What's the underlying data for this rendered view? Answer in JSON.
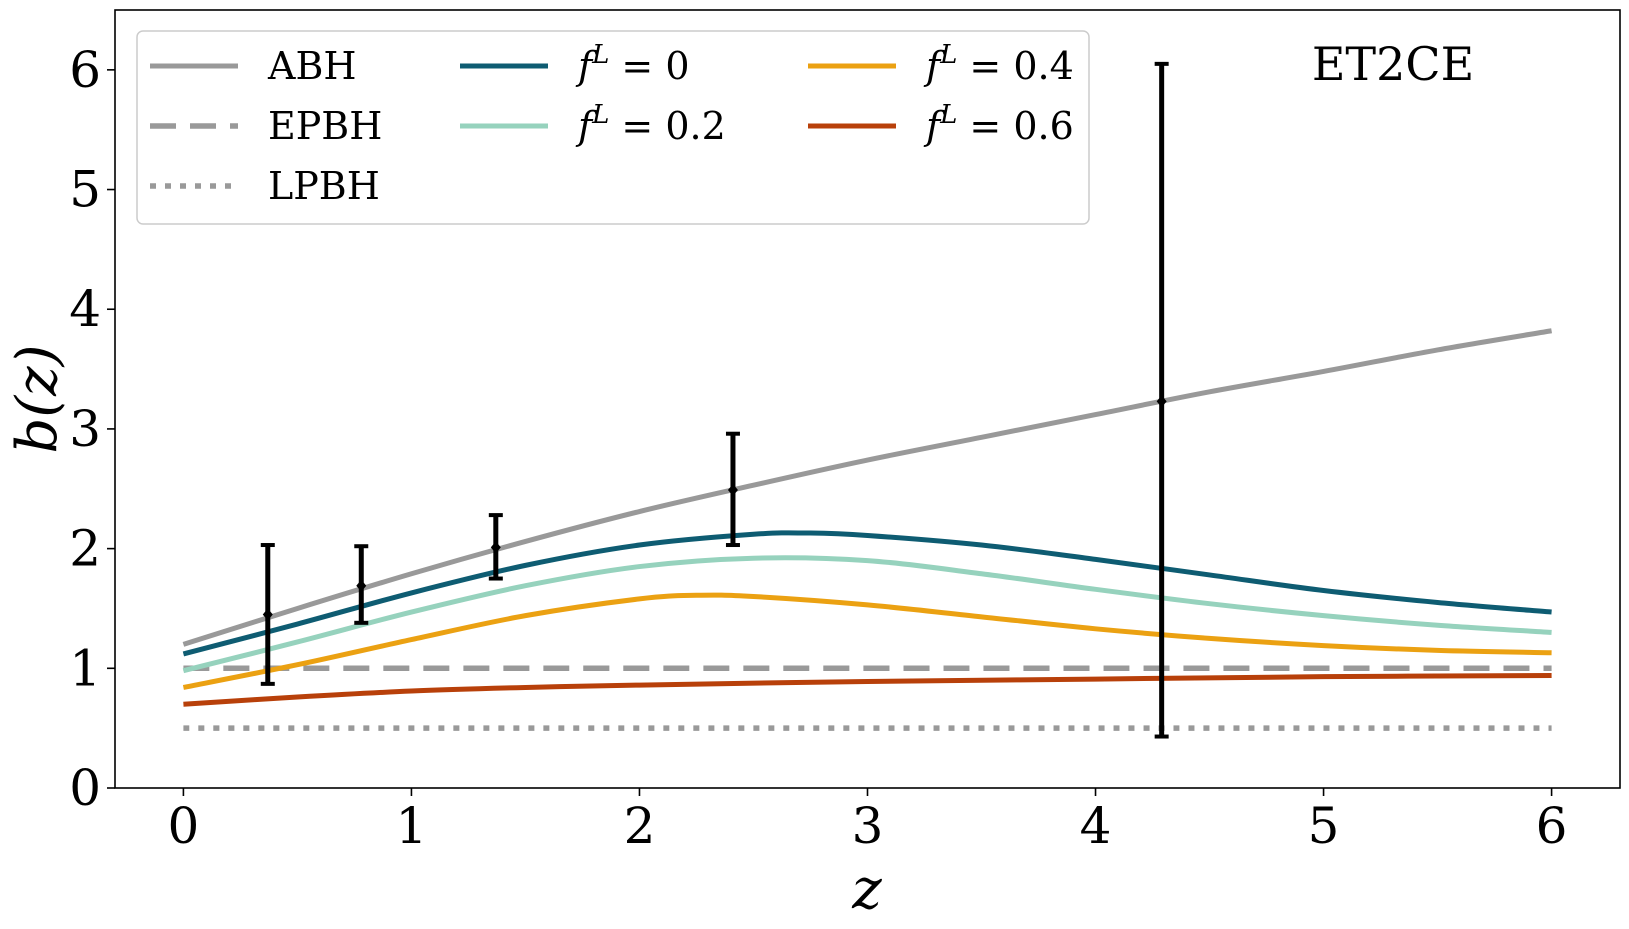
{
  "chart_data": {
    "type": "line",
    "xlabel": "z",
    "ylabel": "b(z)",
    "xlim": [
      -0.3,
      6.3
    ],
    "ylim": [
      0,
      6.5
    ],
    "xticks": [
      0,
      1,
      2,
      3,
      4,
      5,
      6
    ],
    "yticks": [
      0,
      1,
      2,
      3,
      4,
      5,
      6
    ],
    "xtick_labels": [
      "0",
      "1",
      "2",
      "3",
      "4",
      "5",
      "6"
    ],
    "ytick_labels": [
      "0",
      "1",
      "2",
      "3",
      "4",
      "5",
      "6"
    ],
    "grid": false,
    "legend_position": "top-left",
    "annotation": "ET2CE",
    "series": [
      {
        "name": "ABH",
        "color": "#999999",
        "style": "solid",
        "x": [
          0,
          0.5,
          1,
          1.5,
          2,
          2.5,
          3,
          3.5,
          4,
          4.5,
          5,
          5.5,
          6
        ],
        "y": [
          1.2,
          1.5,
          1.79,
          2.06,
          2.31,
          2.53,
          2.74,
          2.93,
          3.12,
          3.31,
          3.48,
          3.66,
          3.82
        ]
      },
      {
        "name": "EPBH",
        "color": "#999999",
        "style": "dashed",
        "x": [
          0,
          6
        ],
        "y": [
          1.0,
          1.0
        ]
      },
      {
        "name": "LPBH",
        "color": "#999999",
        "style": "dotted",
        "x": [
          0,
          6
        ],
        "y": [
          0.5,
          0.5
        ]
      },
      {
        "name": "f^L = 0",
        "label_base": "f",
        "label_sup": "L",
        "label_rest": " = 0",
        "color": "#0e5c72",
        "style": "solid",
        "x": [
          0,
          0.5,
          1,
          1.5,
          2,
          2.5,
          2.75,
          3,
          3.5,
          4,
          4.5,
          5,
          5.5,
          6
        ],
        "y": [
          1.12,
          1.37,
          1.63,
          1.86,
          2.03,
          2.12,
          2.13,
          2.11,
          2.03,
          1.91,
          1.78,
          1.65,
          1.55,
          1.47
        ]
      },
      {
        "name": "f^L = 0.2",
        "label_base": "f",
        "label_sup": "L",
        "label_rest": " = 0.2",
        "color": "#96d2bd",
        "style": "solid",
        "x": [
          0,
          0.5,
          1,
          1.5,
          2,
          2.5,
          3,
          3.5,
          4,
          4.5,
          5,
          5.5,
          6
        ],
        "y": [
          0.98,
          1.22,
          1.47,
          1.69,
          1.85,
          1.92,
          1.9,
          1.79,
          1.66,
          1.54,
          1.44,
          1.36,
          1.3
        ]
      },
      {
        "name": "f^L = 0.4",
        "label_base": "f",
        "label_sup": "L",
        "label_rest": " = 0.4",
        "color": "#eba112",
        "style": "solid",
        "x": [
          0,
          0.5,
          1,
          1.5,
          2,
          2.25,
          2.5,
          3,
          3.5,
          4,
          4.5,
          5,
          5.5,
          6
        ],
        "y": [
          0.84,
          1.03,
          1.24,
          1.44,
          1.58,
          1.61,
          1.6,
          1.53,
          1.43,
          1.33,
          1.25,
          1.19,
          1.15,
          1.13
        ]
      },
      {
        "name": "f^L = 0.6",
        "label_base": "f",
        "label_sup": "L",
        "label_rest": " = 0.6",
        "color": "#b8400a",
        "style": "solid",
        "x": [
          0,
          0.5,
          1,
          1.5,
          2,
          3,
          4,
          5,
          6
        ],
        "y": [
          0.7,
          0.76,
          0.81,
          0.84,
          0.86,
          0.89,
          0.91,
          0.93,
          0.94
        ]
      }
    ],
    "errorbars": {
      "color": "#000000",
      "x": [
        0.37,
        0.78,
        1.37,
        2.41,
        4.29
      ],
      "y": [
        1.45,
        1.69,
        2.01,
        2.49,
        3.23
      ],
      "yerr_low": [
        0.58,
        0.31,
        0.26,
        0.46,
        2.8
      ],
      "yerr_high": [
        0.58,
        0.33,
        0.27,
        0.47,
        2.82
      ]
    }
  }
}
